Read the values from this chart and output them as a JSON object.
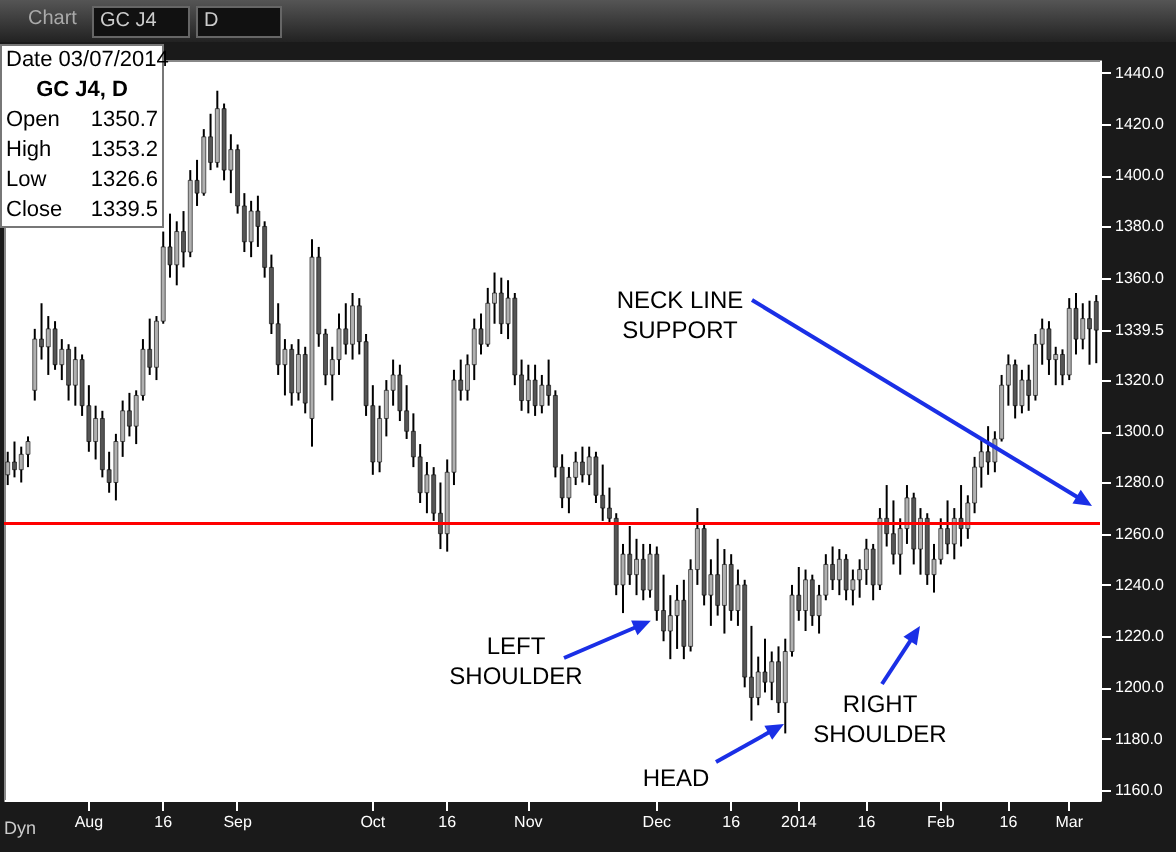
{
  "chart_data": {
    "type": "candlestick",
    "color": "#000000",
    "categories": [
      null,
      null,
      null,
      null,
      null,
      null,
      null,
      null,
      null,
      null,
      null,
      null,
      "Aug",
      null,
      null,
      null,
      null,
      null,
      null,
      null,
      null,
      null,
      null,
      "16",
      null,
      null,
      null,
      null,
      null,
      null,
      null,
      null,
      null,
      null,
      "Sep",
      null,
      null,
      null,
      null,
      null,
      null,
      null,
      null,
      null,
      null,
      null,
      null,
      null,
      null,
      null,
      null,
      null,
      null,
      null,
      "Oct",
      null,
      null,
      null,
      null,
      null,
      null,
      null,
      null,
      null,
      null,
      "16",
      null,
      null,
      null,
      null,
      null,
      null,
      null,
      null,
      null,
      null,
      null,
      "Nov",
      null,
      null,
      null,
      null,
      null,
      null,
      null,
      null,
      null,
      null,
      null,
      null,
      null,
      null,
      null,
      null,
      null,
      null,
      "Dec",
      null,
      null,
      null,
      null,
      null,
      null,
      null,
      null,
      null,
      null,
      "16",
      null,
      null,
      null,
      null,
      null,
      null,
      null,
      null,
      null,
      "2014",
      null,
      null,
      null,
      null,
      null,
      null,
      null,
      null,
      null,
      "16",
      null,
      null,
      null,
      null,
      null,
      null,
      null,
      null,
      null,
      null,
      "Feb",
      null,
      null,
      null,
      null,
      null,
      null,
      null,
      null,
      null,
      "16",
      null,
      null,
      null,
      null,
      null,
      null,
      null,
      null,
      "Mar",
      null,
      null,
      null,
      null
    ],
    "ohlc": [
      [
        1283,
        1292,
        1279,
        1288
      ],
      [
        1288,
        1296,
        1282,
        1285
      ],
      [
        1285,
        1294,
        1280,
        1291
      ],
      [
        1291,
        1298,
        1286,
        1296
      ],
      [
        1316,
        1340,
        1312,
        1336
      ],
      [
        1336,
        1350,
        1328,
        1333
      ],
      [
        1333,
        1345,
        1322,
        1340
      ],
      [
        1340,
        1343,
        1324,
        1326
      ],
      [
        1326,
        1336,
        1320,
        1332
      ],
      [
        1332,
        1334,
        1312,
        1318
      ],
      [
        1318,
        1333,
        1310,
        1328
      ],
      [
        1328,
        1330,
        1306,
        1310
      ],
      [
        1310,
        1318,
        1292,
        1296
      ],
      [
        1296,
        1310,
        1289,
        1305
      ],
      [
        1305,
        1308,
        1282,
        1285
      ],
      [
        1285,
        1292,
        1276,
        1280
      ],
      [
        1280,
        1299,
        1273,
        1296
      ],
      [
        1296,
        1312,
        1290,
        1308
      ],
      [
        1308,
        1315,
        1298,
        1302
      ],
      [
        1302,
        1316,
        1295,
        1314
      ],
      [
        1314,
        1336,
        1312,
        1332
      ],
      [
        1332,
        1344,
        1322,
        1325
      ],
      [
        1325,
        1345,
        1320,
        1343
      ],
      [
        1343,
        1378,
        1342,
        1372
      ],
      [
        1372,
        1385,
        1360,
        1365
      ],
      [
        1365,
        1382,
        1357,
        1378
      ],
      [
        1378,
        1386,
        1364,
        1370
      ],
      [
        1370,
        1402,
        1368,
        1398
      ],
      [
        1398,
        1406,
        1388,
        1393
      ],
      [
        1393,
        1418,
        1392,
        1415
      ],
      [
        1415,
        1424,
        1402,
        1405
      ],
      [
        1405,
        1433,
        1403,
        1426
      ],
      [
        1426,
        1428,
        1398,
        1402
      ],
      [
        1402,
        1416,
        1393,
        1410
      ],
      [
        1410,
        1412,
        1385,
        1388
      ],
      [
        1388,
        1393,
        1370,
        1374
      ],
      [
        1374,
        1390,
        1368,
        1386
      ],
      [
        1386,
        1392,
        1372,
        1380
      ],
      [
        1380,
        1382,
        1360,
        1364
      ],
      [
        1364,
        1369,
        1338,
        1342
      ],
      [
        1342,
        1350,
        1322,
        1326
      ],
      [
        1326,
        1336,
        1314,
        1332
      ],
      [
        1332,
        1334,
        1310,
        1315
      ],
      [
        1315,
        1336,
        1312,
        1330
      ],
      [
        1330,
        1333,
        1307,
        1311
      ],
      [
        1305,
        1375,
        1294,
        1368
      ],
      [
        1368,
        1372,
        1333,
        1338
      ],
      [
        1338,
        1340,
        1318,
        1322
      ],
      [
        1322,
        1333,
        1312,
        1328
      ],
      [
        1328,
        1346,
        1322,
        1340
      ],
      [
        1340,
        1350,
        1330,
        1334
      ],
      [
        1334,
        1354,
        1328,
        1349
      ],
      [
        1349,
        1352,
        1330,
        1335
      ],
      [
        1335,
        1338,
        1306,
        1310
      ],
      [
        1310,
        1318,
        1283,
        1288
      ],
      [
        1288,
        1310,
        1284,
        1305
      ],
      [
        1305,
        1320,
        1298,
        1316
      ],
      [
        1316,
        1328,
        1310,
        1322
      ],
      [
        1322,
        1326,
        1304,
        1308
      ],
      [
        1308,
        1318,
        1297,
        1300
      ],
      [
        1300,
        1307,
        1286,
        1290
      ],
      [
        1290,
        1295,
        1272,
        1276
      ],
      [
        1276,
        1288,
        1268,
        1283
      ],
      [
        1283,
        1286,
        1265,
        1268
      ],
      [
        1268,
        1280,
        1254,
        1260
      ],
      [
        1260,
        1289,
        1253,
        1284
      ],
      [
        1284,
        1324,
        1279,
        1320
      ],
      [
        1320,
        1328,
        1312,
        1316
      ],
      [
        1316,
        1330,
        1312,
        1326
      ],
      [
        1326,
        1344,
        1320,
        1340
      ],
      [
        1340,
        1346,
        1330,
        1334
      ],
      [
        1334,
        1356,
        1333,
        1350
      ],
      [
        1350,
        1362,
        1342,
        1354
      ],
      [
        1354,
        1360,
        1338,
        1342
      ],
      [
        1342,
        1359,
        1336,
        1352
      ],
      [
        1352,
        1354,
        1318,
        1322
      ],
      [
        1322,
        1328,
        1308,
        1312
      ],
      [
        1312,
        1326,
        1307,
        1320
      ],
      [
        1320,
        1326,
        1306,
        1310
      ],
      [
        1310,
        1322,
        1307,
        1318
      ],
      [
        1318,
        1328,
        1310,
        1314
      ],
      [
        1314,
        1316,
        1282,
        1286
      ],
      [
        1286,
        1291,
        1270,
        1274
      ],
      [
        1274,
        1286,
        1268,
        1282
      ],
      [
        1282,
        1292,
        1279,
        1288
      ],
      [
        1288,
        1294,
        1280,
        1283
      ],
      [
        1283,
        1294,
        1279,
        1290
      ],
      [
        1290,
        1292,
        1272,
        1275
      ],
      [
        1275,
        1287,
        1265,
        1270
      ],
      [
        1270,
        1278,
        1264,
        1266
      ],
      [
        1266,
        1268,
        1236,
        1240
      ],
      [
        1240,
        1256,
        1229,
        1252
      ],
      [
        1252,
        1263,
        1240,
        1244
      ],
      [
        1244,
        1258,
        1236,
        1250
      ],
      [
        1250,
        1256,
        1234,
        1238
      ],
      [
        1238,
        1256,
        1235,
        1252
      ],
      [
        1252,
        1255,
        1226,
        1230
      ],
      [
        1230,
        1244,
        1218,
        1222
      ],
      [
        1222,
        1236,
        1211,
        1228
      ],
      [
        1228,
        1240,
        1215,
        1234
      ],
      [
        1234,
        1242,
        1211,
        1216
      ],
      [
        1216,
        1250,
        1214,
        1246
      ],
      [
        1246,
        1270,
        1240,
        1262
      ],
      [
        1262,
        1264,
        1232,
        1236
      ],
      [
        1236,
        1250,
        1224,
        1244
      ],
      [
        1244,
        1258,
        1228,
        1232
      ],
      [
        1232,
        1254,
        1221,
        1248
      ],
      [
        1248,
        1252,
        1226,
        1230
      ],
      [
        1230,
        1246,
        1224,
        1240
      ],
      [
        1240,
        1242,
        1200,
        1204
      ],
      [
        1204,
        1224,
        1187,
        1196
      ],
      [
        1196,
        1212,
        1193,
        1206
      ],
      [
        1206,
        1219,
        1198,
        1202
      ],
      [
        1202,
        1214,
        1195,
        1210
      ],
      [
        1210,
        1216,
        1190,
        1194
      ],
      [
        1194,
        1219,
        1182,
        1214
      ],
      [
        1214,
        1240,
        1212,
        1236
      ],
      [
        1236,
        1247,
        1226,
        1230
      ],
      [
        1230,
        1246,
        1222,
        1242
      ],
      [
        1242,
        1244,
        1224,
        1228
      ],
      [
        1228,
        1240,
        1221,
        1236
      ],
      [
        1236,
        1252,
        1234,
        1248
      ],
      [
        1248,
        1255,
        1238,
        1242
      ],
      [
        1242,
        1254,
        1236,
        1250
      ],
      [
        1250,
        1252,
        1234,
        1238
      ],
      [
        1238,
        1246,
        1232,
        1242
      ],
      [
        1242,
        1250,
        1235,
        1246
      ],
      [
        1246,
        1258,
        1240,
        1254
      ],
      [
        1254,
        1256,
        1234,
        1240
      ],
      [
        1240,
        1270,
        1238,
        1266
      ],
      [
        1266,
        1279,
        1255,
        1260
      ],
      [
        1260,
        1273,
        1248,
        1252
      ],
      [
        1252,
        1266,
        1244,
        1262
      ],
      [
        1262,
        1279,
        1256,
        1274
      ],
      [
        1274,
        1276,
        1248,
        1254
      ],
      [
        1254,
        1270,
        1244,
        1266
      ],
      [
        1266,
        1268,
        1240,
        1244
      ],
      [
        1244,
        1256,
        1237,
        1250
      ],
      [
        1250,
        1266,
        1248,
        1262
      ],
      [
        1262,
        1273,
        1252,
        1256
      ],
      [
        1256,
        1270,
        1250,
        1266
      ],
      [
        1266,
        1279,
        1255,
        1262
      ],
      [
        1262,
        1275,
        1258,
        1272
      ],
      [
        1272,
        1290,
        1268,
        1286
      ],
      [
        1286,
        1297,
        1278,
        1292
      ],
      [
        1292,
        1302,
        1283,
        1288
      ],
      [
        1288,
        1300,
        1284,
        1297
      ],
      [
        1297,
        1322,
        1296,
        1318
      ],
      [
        1318,
        1330,
        1310,
        1326
      ],
      [
        1326,
        1328,
        1305,
        1310
      ],
      [
        1310,
        1324,
        1307,
        1320
      ],
      [
        1320,
        1326,
        1308,
        1314
      ],
      [
        1314,
        1338,
        1312,
        1334
      ],
      [
        1334,
        1344,
        1326,
        1340
      ],
      [
        1340,
        1343,
        1322,
        1328
      ],
      [
        1328,
        1333,
        1318,
        1330
      ],
      [
        1330,
        1332,
        1318,
        1322
      ],
      [
        1322,
        1352,
        1320,
        1348
      ],
      [
        1348,
        1354,
        1330,
        1336
      ],
      [
        1336,
        1350,
        1332,
        1344
      ],
      [
        1344,
        1351,
        1326,
        1340
      ],
      [
        1350.7,
        1353.2,
        1326.6,
        1339.5
      ]
    ],
    "ylim": [
      1156,
      1445
    ],
    "yticks": [
      {
        "value": 1160,
        "label": "1160.0"
      },
      {
        "value": 1180,
        "label": "1180.0"
      },
      {
        "value": 1200,
        "label": "1200.0"
      },
      {
        "value": 1220,
        "label": "1220.0"
      },
      {
        "value": 1240,
        "label": "1240.0"
      },
      {
        "value": 1260,
        "label": "1260.0"
      },
      {
        "value": 1280,
        "label": "1280.0"
      },
      {
        "value": 1300,
        "label": "1300.0"
      },
      {
        "value": 1320,
        "label": "1320.0"
      },
      {
        "value": 1339.5,
        "label": "1339.5"
      },
      {
        "value": 1360,
        "label": "1360.0"
      },
      {
        "value": 1380,
        "label": "1380.0"
      },
      {
        "value": 1400,
        "label": "1400.0"
      },
      {
        "value": 1420,
        "label": "1420.0"
      },
      {
        "value": 1440,
        "label": "1440.0"
      }
    ],
    "ref_lines": [
      {
        "axis": "y",
        "value": 1264,
        "color": "#ff0000"
      }
    ],
    "annotations": [
      "Chart",
      "GC J4",
      "D",
      "Date 03/07/2014",
      "GC J4, D",
      "Open 1350.7",
      "High 1353.2",
      "Low 1326.6",
      "Close 1339.5",
      "Dyn",
      "NECK LINE SUPPORT",
      {
        "text": "LEFT SHOULDER",
        "x": "Dec",
        "y": 1226
      },
      "HEAD",
      "RIGHT SHOULDER"
    ]
  }
}
